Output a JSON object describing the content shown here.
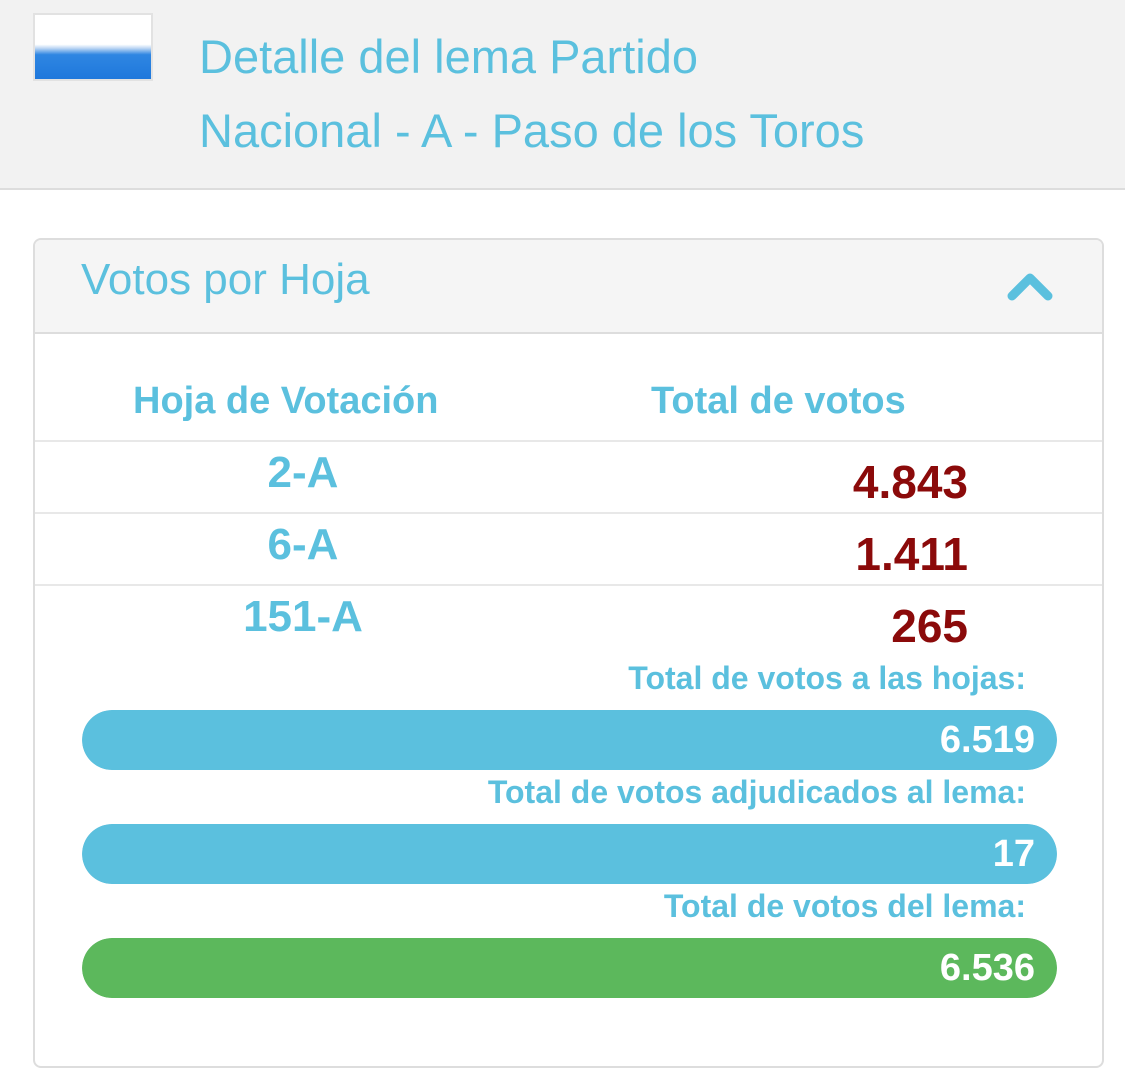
{
  "header": {
    "title_line1": "Detalle del lema Partido",
    "title_line2": "Nacional - A - Paso de los Toros",
    "flag_icon": "uruguay-flag-icon"
  },
  "panel": {
    "title": "Votos por Hoja",
    "collapse_icon": "chevron-up-icon",
    "columns": {
      "hoja": "Hoja de Votación",
      "total": "Total de votos"
    },
    "rows": [
      {
        "hoja": "2-A",
        "votos": "4.843"
      },
      {
        "hoja": "6-A",
        "votos": "1.411"
      },
      {
        "hoja": "151-A",
        "votos": "265"
      }
    ],
    "summary": [
      {
        "label": "Total de votos a las hojas:",
        "value": "6.519",
        "fill_percent": 100,
        "color": "#5bc0de"
      },
      {
        "label": "Total de votos adjudicados al lema:",
        "value": "17",
        "fill_percent": 100,
        "color": "#5bc0de"
      },
      {
        "label": "Total de votos del lema:",
        "value": "6.536",
        "fill_percent": 100,
        "color": "#5cb85c"
      }
    ]
  },
  "colors": {
    "accent": "#5bc0de",
    "votes": "#8b0a0a",
    "success": "#5cb85c"
  }
}
